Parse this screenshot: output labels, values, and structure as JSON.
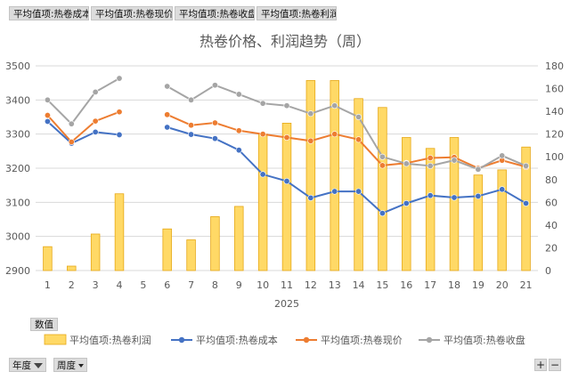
{
  "field_buttons": [
    "平均值项:热卷成本",
    "平均值项:热卷现价",
    "平均值项:热卷收盘",
    "平均值项:热卷利润"
  ],
  "values_button": "数值",
  "axis_fields": [
    {
      "label": "年度"
    },
    {
      "label": "周度"
    }
  ],
  "zoom": {
    "plus": "+",
    "minus": "−"
  },
  "colors": {
    "bar": "#FFD966",
    "bar_border": "#E6A817",
    "cost": "#4472C4",
    "price": "#ED7D31",
    "close": "#A5A5A5"
  },
  "chart_data": {
    "type": "bar+line",
    "title": "热卷价格、利润趋势（周）",
    "x_group_label": "2025",
    "categories": [
      "1",
      "2",
      "3",
      "4",
      "5",
      "6",
      "7",
      "8",
      "9",
      "10",
      "11",
      "12",
      "13",
      "14",
      "15",
      "16",
      "17",
      "18",
      "19",
      "20",
      "21"
    ],
    "y_left": {
      "min": 2900,
      "max": 3500,
      "ticks": [
        2900,
        3000,
        3100,
        3200,
        3300,
        3400,
        3500
      ]
    },
    "y_right": {
      "min": 0,
      "max": 180,
      "ticks": [
        0,
        20,
        40,
        60,
        80,
        100,
        120,
        140,
        160,
        180
      ]
    },
    "series": [
      {
        "name": "平均值项:热卷利润",
        "kind": "bar",
        "axis": "left",
        "values": [
          2970,
          2913,
          3007,
          3125,
          null,
          3022,
          2990,
          3058,
          3088,
          3300,
          3332,
          3457,
          3457,
          3404,
          3378,
          3290,
          3258,
          3290,
          3180,
          3195,
          3262
        ]
      },
      {
        "name": "平均值项:热卷成本",
        "kind": "line",
        "axis": "left",
        "values": [
          3337,
          3273,
          3306,
          3298,
          null,
          3320,
          3299,
          3287,
          3253,
          3182,
          3162,
          3113,
          3132,
          3132,
          3068,
          3097,
          3120,
          3114,
          3118,
          3138,
          3097
        ]
      },
      {
        "name": "平均值项:热卷现价",
        "kind": "line",
        "axis": "left",
        "values": [
          3355,
          3277,
          3338,
          3365,
          null,
          3357,
          3326,
          3333,
          3310,
          3300,
          3290,
          3280,
          3300,
          3284,
          3208,
          3215,
          3230,
          3232,
          3200,
          3223,
          3204
        ]
      },
      {
        "name": "平均值项:热卷收盘",
        "kind": "line",
        "axis": "right",
        "values": [
          150,
          129,
          157,
          169,
          null,
          162,
          150,
          163,
          155,
          147,
          145,
          138,
          145,
          135,
          100,
          94,
          92,
          97,
          89,
          101,
          92
        ]
      }
    ]
  }
}
